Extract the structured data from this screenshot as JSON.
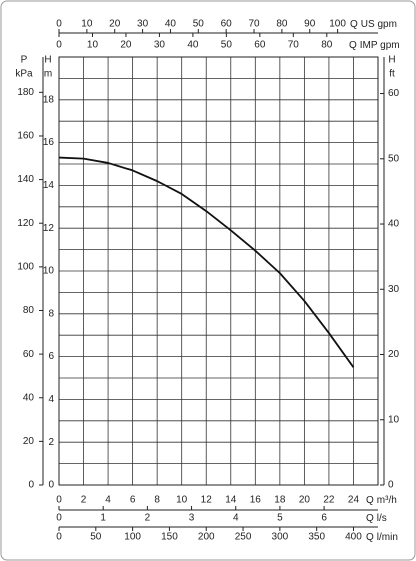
{
  "chart_data": {
    "type": "line",
    "xlabel": "Q",
    "xunit": "m³/h",
    "ylabel": "H",
    "yunit": "m",
    "xlim": [
      0,
      26
    ],
    "ylim": [
      0,
      20
    ],
    "xticks": [
      0,
      2,
      4,
      6,
      8,
      10,
      12,
      14,
      16,
      18,
      20,
      22,
      24
    ],
    "yticks": [
      0,
      2,
      4,
      6,
      8,
      10,
      12,
      14,
      16,
      18
    ],
    "ygrid": [
      0,
      1,
      2,
      3,
      4,
      5,
      6,
      7,
      8,
      9,
      10,
      11,
      12,
      13,
      14,
      15,
      16,
      17,
      18,
      19,
      20
    ],
    "grid": true,
    "x": [
      0,
      2,
      4,
      6,
      8,
      10,
      12,
      14,
      16,
      18,
      20,
      22,
      24
    ],
    "series": [
      {
        "color": "#111111",
        "values": [
          15.3,
          15.25,
          15.05,
          14.7,
          14.2,
          13.6,
          12.8,
          11.9,
          10.95,
          9.9,
          8.6,
          7.1,
          5.5
        ]
      }
    ],
    "top_axes": [
      {
        "label": "Q",
        "unit": "US gpm",
        "lim": [
          0,
          114.5
        ],
        "ticks": [
          0,
          10,
          20,
          30,
          40,
          50,
          60,
          70,
          80,
          90,
          100
        ]
      },
      {
        "label": "Q",
        "unit": "IMP gpm",
        "lim": [
          0,
          95.3
        ],
        "ticks": [
          0,
          10,
          20,
          30,
          40,
          50,
          60,
          70,
          80
        ]
      }
    ],
    "bottom_axes": [
      {
        "label": "Q",
        "unit": "l/s",
        "lim": [
          0,
          7.22
        ],
        "ticks": [
          0,
          1,
          2,
          3,
          4,
          5,
          6
        ]
      },
      {
        "label": "Q",
        "unit": "l/min",
        "lim": [
          0,
          433.3
        ],
        "ticks": [
          0,
          50,
          100,
          150,
          200,
          250,
          300,
          350,
          400
        ]
      }
    ],
    "left_axis": {
      "label": "P",
      "unit": "kPa",
      "lim": [
        0,
        196.2
      ],
      "ticks": [
        0,
        20,
        40,
        60,
        80,
        100,
        120,
        140,
        160,
        180
      ]
    },
    "right_axis": {
      "label": "H",
      "unit": "ft",
      "lim": [
        0,
        65.6
      ],
      "ticks": [
        0,
        10,
        20,
        30,
        40,
        50,
        60
      ]
    }
  }
}
